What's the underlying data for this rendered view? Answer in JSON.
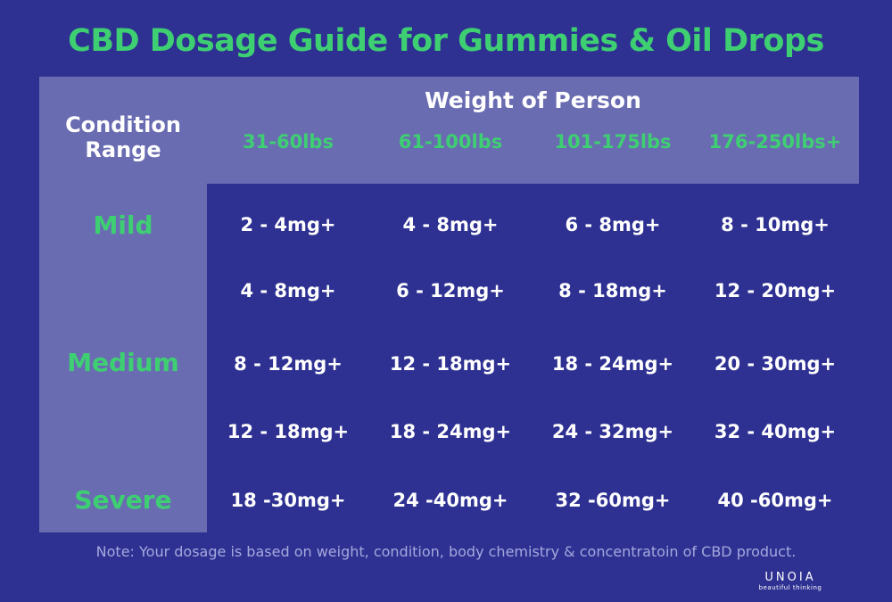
{
  "title": "CBD Dosage Guide for Gummies & Oil Drops",
  "header": {
    "condition_line1": "Condition",
    "condition_line2": "Range",
    "weight_title": "Weight of Person",
    "weight_ranges": [
      "31-60lbs",
      "61-100lbs",
      "101-175lbs",
      "176-250lbs+"
    ]
  },
  "conditions": [
    "Mild",
    "Medium",
    "Severe"
  ],
  "rows": [
    [
      "2 - 4mg+",
      "4 - 8mg+",
      "6 - 8mg+",
      "8 - 10mg+"
    ],
    [
      "4 - 8mg+",
      "6 - 12mg+",
      "8 - 18mg+",
      "12 - 20mg+"
    ],
    [
      "8 - 12mg+",
      "12 - 18mg+",
      "18 - 24mg+",
      "20 - 30mg+"
    ],
    [
      "12 - 18mg+",
      "18 - 24mg+",
      "24 - 32mg+",
      "32 - 40mg+"
    ],
    [
      "18 -30mg+",
      "24 -40mg+",
      "32 -60mg+",
      "40 -60mg+"
    ]
  ],
  "note": "Note: Your dosage is based on weight, condition, body chemistry & concentratoin of CBD product.",
  "logo": {
    "name": "UNOIA",
    "tagline": "beautiful thinking"
  },
  "colors": {
    "background": "#2e3192",
    "panel": "#6a6cb2",
    "accent": "#3ecf72",
    "text": "#ffffff"
  }
}
